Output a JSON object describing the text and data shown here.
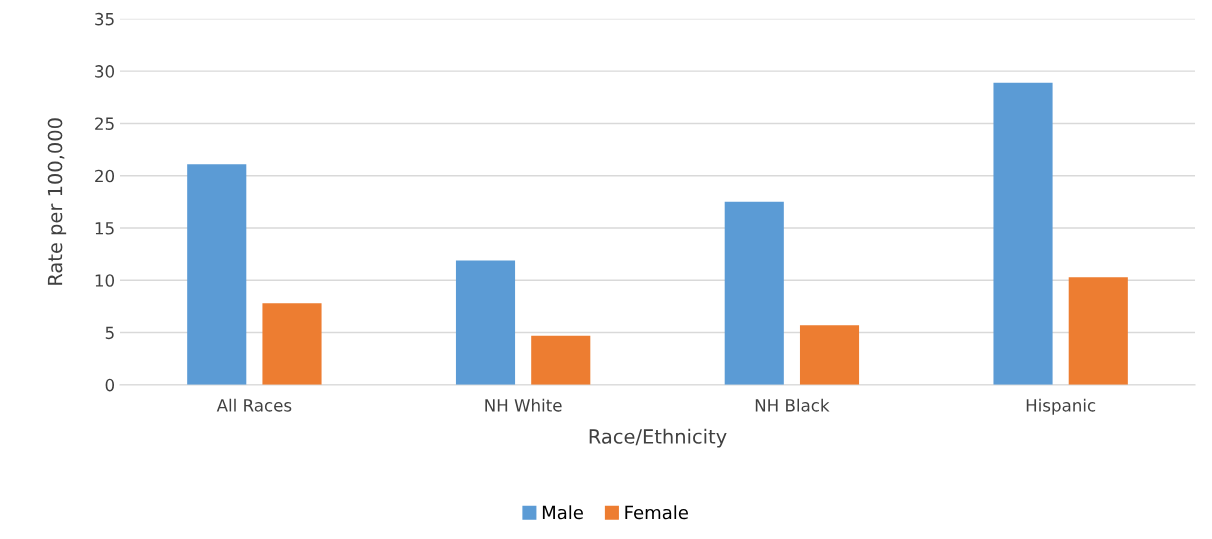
{
  "chart_data": {
    "type": "bar",
    "xlabel": "Race/Ethnicity",
    "ylabel": "Rate per 100,000",
    "categories": [
      "All Races",
      "NH White",
      "NH Black",
      "Hispanic"
    ],
    "series": [
      {
        "name": "Male",
        "color": "#5b9bd5",
        "values": [
          21.1,
          11.9,
          17.5,
          28.9
        ]
      },
      {
        "name": "Female",
        "color": "#ed7d31",
        "values": [
          7.8,
          4.7,
          5.7,
          10.3
        ]
      }
    ],
    "ylim": [
      0,
      35
    ],
    "yticks": [
      0,
      5,
      10,
      15,
      20,
      25,
      30,
      35
    ],
    "grid": "y",
    "legend": "bottom"
  }
}
